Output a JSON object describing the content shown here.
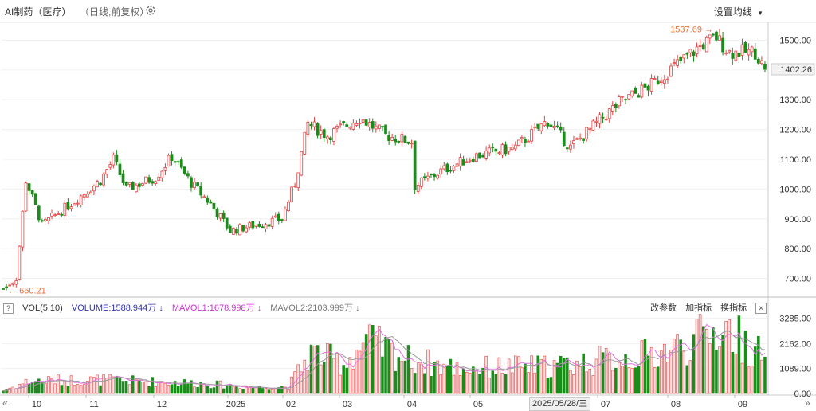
{
  "header": {
    "title": "AI制药（医疗）",
    "subtitle": "（日线,前复权）",
    "settings_label": "设置均线",
    "settings_icon": "gear-icon",
    "caret_icon": "caret-down-icon"
  },
  "price_axis": {
    "ticks": [
      "1500.00",
      "1400.00",
      "1300.00",
      "1200.00",
      "1100.00",
      "1000.00",
      "900.00",
      "800.00",
      "700.00"
    ],
    "current_price": "1402.26"
  },
  "annotations": {
    "high_label": "1537.69",
    "low_label": "660.21"
  },
  "volume_panel": {
    "help_label": "?",
    "indicator_label": "VOL(5,10)",
    "volume_label": "VOLUME:1588.944万",
    "mavol1_label": "MAVOL1:1678.998万",
    "mavol2_label": "MAVOL2:2103.999万",
    "arrow_glyph": "↓",
    "edit_params_label": "改参数",
    "add_indicator_label": "加指标",
    "switch_indicator_label": "换指标",
    "close_glyph": "✕",
    "ticks": [
      "3285.00",
      "2162.00",
      "1089.00",
      "0.00"
    ]
  },
  "time_axis": {
    "labels": [
      "10",
      "11",
      "12",
      "2025",
      "02",
      "03",
      "04",
      "05",
      "07",
      "08",
      "09"
    ],
    "cursor_date": "2025/05/28/三",
    "nav_left": "«",
    "nav_right": "»"
  },
  "colors": {
    "up": "#e84040",
    "down": "#1a8c1a",
    "annotation": "#e8703a",
    "volume_text": "#3333aa",
    "mavol1": "#cc33cc",
    "mavol2": "#888888",
    "ma_line1": "#e070e0",
    "ma_line2": "#9a9a9a"
  },
  "chart_data": {
    "type": "candlestick",
    "series_note": "",
    "ylim": [
      640,
      1560
    ],
    "volume_ylim": [
      0,
      3400
    ],
    "anchors": [
      {
        "x": 0,
        "close": 665
      },
      {
        "x": 4,
        "close": 700
      },
      {
        "x": 7,
        "close": 1030
      },
      {
        "x": 12,
        "close": 880
      },
      {
        "x": 22,
        "close": 960
      },
      {
        "x": 30,
        "close": 1030
      },
      {
        "x": 34,
        "close": 1100
      },
      {
        "x": 38,
        "close": 1000
      },
      {
        "x": 47,
        "close": 1040
      },
      {
        "x": 52,
        "close": 1110
      },
      {
        "x": 58,
        "close": 1020
      },
      {
        "x": 64,
        "close": 950
      },
      {
        "x": 70,
        "close": 860
      },
      {
        "x": 78,
        "close": 880
      },
      {
        "x": 86,
        "close": 900
      },
      {
        "x": 90,
        "close": 1020
      },
      {
        "x": 94,
        "close": 1220
      },
      {
        "x": 100,
        "close": 1180
      },
      {
        "x": 110,
        "close": 1240
      },
      {
        "x": 118,
        "close": 1180
      },
      {
        "x": 126,
        "close": 1160
      },
      {
        "x": 127,
        "close": 1010
      },
      {
        "x": 135,
        "close": 1060
      },
      {
        "x": 145,
        "close": 1110
      },
      {
        "x": 158,
        "close": 1140
      },
      {
        "x": 168,
        "close": 1230
      },
      {
        "x": 175,
        "close": 1140
      },
      {
        "x": 190,
        "close": 1290
      },
      {
        "x": 200,
        "close": 1350
      },
      {
        "x": 208,
        "close": 1420
      },
      {
        "x": 215,
        "close": 1480
      },
      {
        "x": 220,
        "close": 1510
      },
      {
        "x": 224,
        "close": 1460
      },
      {
        "x": 232,
        "close": 1460
      },
      {
        "x": 235,
        "close": 1402
      }
    ],
    "volume_anchors": [
      {
        "x": 0,
        "v": 120
      },
      {
        "x": 8,
        "v": 550
      },
      {
        "x": 30,
        "v": 600
      },
      {
        "x": 60,
        "v": 450
      },
      {
        "x": 80,
        "v": 250
      },
      {
        "x": 88,
        "v": 300
      },
      {
        "x": 95,
        "v": 1800
      },
      {
        "x": 105,
        "v": 1300
      },
      {
        "x": 112,
        "v": 2300
      },
      {
        "x": 125,
        "v": 1500
      },
      {
        "x": 140,
        "v": 1100
      },
      {
        "x": 170,
        "v": 1200
      },
      {
        "x": 200,
        "v": 1700
      },
      {
        "x": 212,
        "v": 2200
      },
      {
        "x": 222,
        "v": 2900
      },
      {
        "x": 235,
        "v": 1589
      }
    ],
    "high": 1537.69,
    "low": 660.21
  }
}
